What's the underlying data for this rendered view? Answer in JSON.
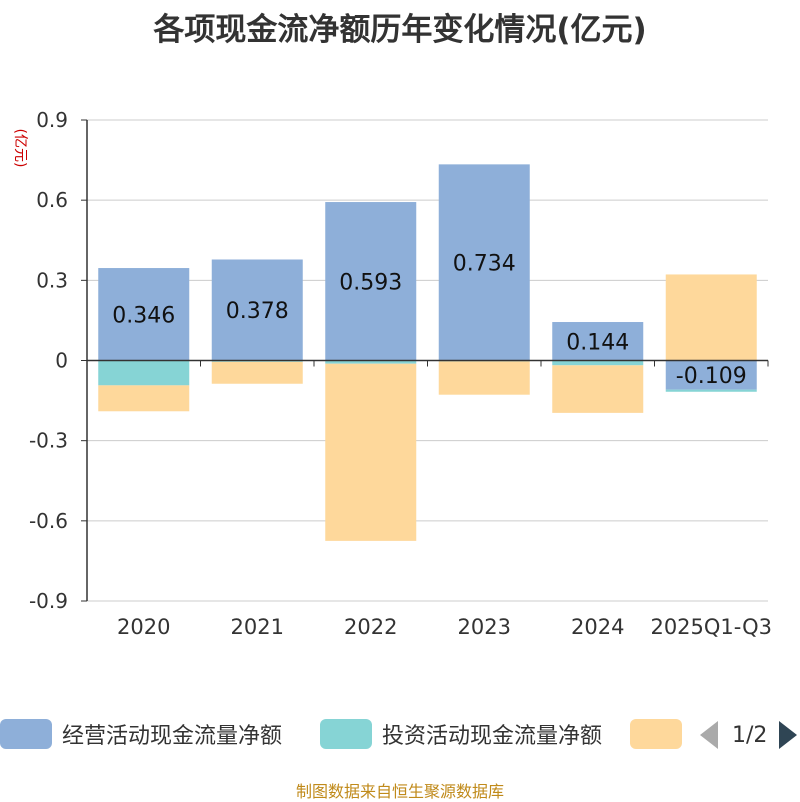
{
  "chart_data": {
    "type": "bar",
    "stacked": true,
    "title": "各项现金流净额历年变化情况(亿元)",
    "ylabel": "(亿元)",
    "ylim": [
      -0.9,
      0.9
    ],
    "yticks": [
      -0.9,
      -0.6,
      -0.3,
      0,
      0.3,
      0.6,
      0.9
    ],
    "ytick_labels": [
      "-0.9",
      "-0.6",
      "-0.3",
      "0",
      "0.3",
      "0.6",
      "0.9"
    ],
    "categories": [
      "2020",
      "2021",
      "2022",
      "2023",
      "2024",
      "2025Q1-Q3"
    ],
    "grid": true,
    "series": [
      {
        "name": "经营活动现金流量净额",
        "color": "#8eafd9",
        "values": [
          0.346,
          0.378,
          0.593,
          0.734,
          0.144,
          -0.109
        ],
        "labels": [
          "0.346",
          "0.378",
          "0.593",
          "0.734",
          "0.144",
          "-0.109"
        ]
      },
      {
        "name": "投资活动现金流量净额",
        "color": "#86d4d5",
        "values": [
          -0.093,
          -0.005,
          -0.012,
          -0.003,
          -0.018,
          -0.008
        ]
      },
      {
        "name": "",
        "color": "#fed89b",
        "values": [
          -0.097,
          -0.082,
          -0.663,
          -0.125,
          -0.178,
          0.322
        ]
      }
    ]
  },
  "legend": {
    "items": [
      {
        "label": "经营活动现金流量净额",
        "color": "#8eafd9"
      },
      {
        "label": "投资活动现金流量净额",
        "color": "#86d4d5"
      },
      {
        "label": "",
        "color": "#fed89b"
      }
    ],
    "page_indicator": "1/2"
  },
  "footer": "制图数据来自恒生聚源数据库"
}
